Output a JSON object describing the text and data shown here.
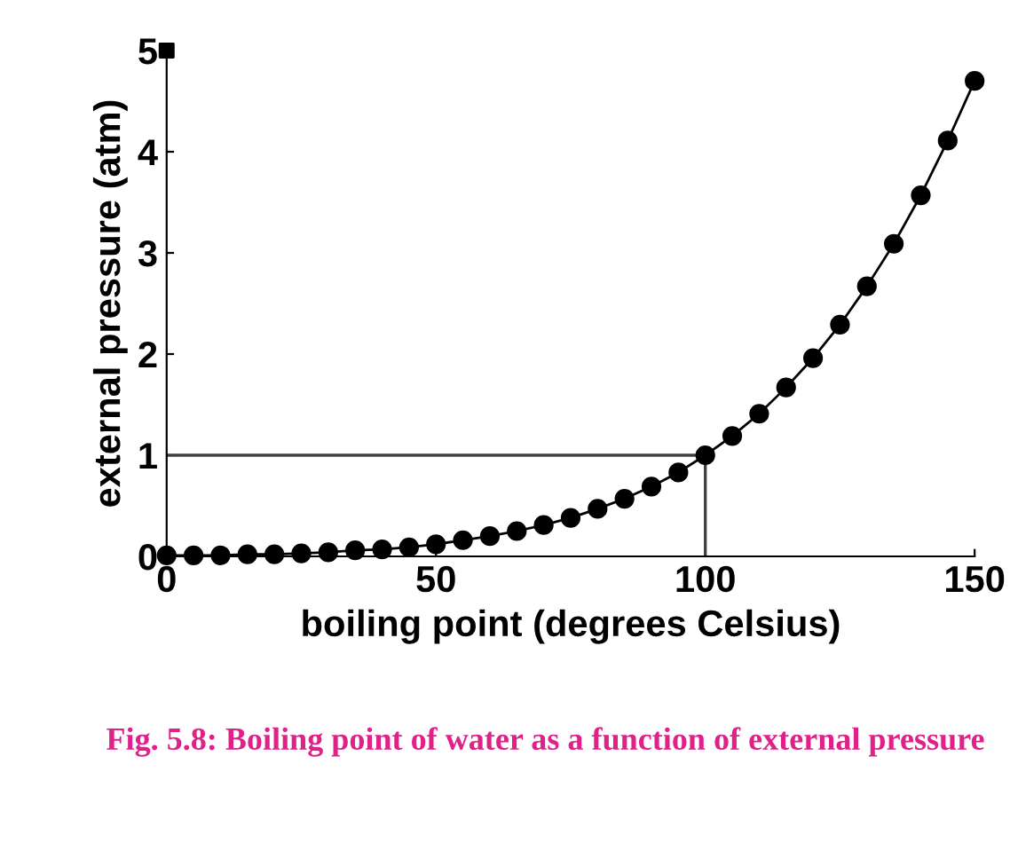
{
  "chart_data": {
    "type": "line",
    "xlabel": "boiling point (degrees Celsius)",
    "ylabel": "external pressure (atm)",
    "x": [
      0,
      5,
      10,
      15,
      20,
      25,
      30,
      35,
      40,
      45,
      50,
      55,
      60,
      65,
      70,
      75,
      80,
      85,
      90,
      95,
      100,
      105,
      110,
      115,
      120,
      125,
      130,
      135,
      140,
      145,
      150
    ],
    "series": [
      {
        "color": "#000000",
        "marker": "circle",
        "values": [
          0.01,
          0.01,
          0.01,
          0.02,
          0.02,
          0.03,
          0.04,
          0.06,
          0.07,
          0.09,
          0.12,
          0.16,
          0.2,
          0.25,
          0.31,
          0.38,
          0.47,
          0.57,
          0.69,
          0.83,
          1.0,
          1.19,
          1.41,
          1.67,
          1.96,
          2.29,
          2.67,
          3.09,
          3.57,
          4.11,
          4.7
        ]
      },
      {
        "type": "scatter",
        "color": "#000000",
        "marker": "square",
        "x": [
          0
        ],
        "values": [
          5
        ]
      }
    ],
    "xlim": [
      0,
      150
    ],
    "ylim": [
      0,
      5
    ],
    "xticks": [
      0,
      50,
      100,
      150
    ],
    "yticks": [
      0,
      1,
      2,
      3,
      4,
      5
    ],
    "ref_lines": [
      {
        "axis": "y",
        "value": 1,
        "color": "#404040"
      },
      {
        "axis": "x",
        "value": 100,
        "color": "#404040"
      }
    ],
    "grid": false,
    "legend": false,
    "annotations": [
      "Fig. 5.8: Boiling point of water as a function of external pressure"
    ]
  }
}
